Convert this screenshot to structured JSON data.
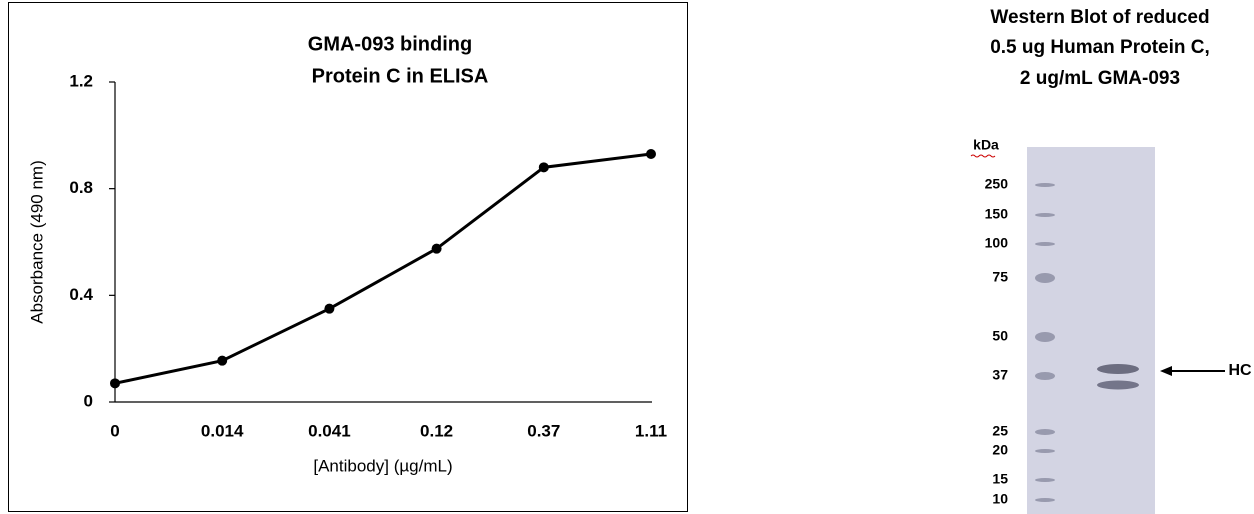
{
  "chart_data": {
    "type": "line",
    "title": [
      "GMA-093 binding",
      "Protein C in ELISA"
    ],
    "xlabel": "[Antibody] (µg/mL)",
    "ylabel": "Absorbance (490 nm)",
    "categories": [
      "0",
      "0.014",
      "0.041",
      "0.12",
      "0.37",
      "1.11"
    ],
    "series": [
      {
        "color": "#000000",
        "values": [
          0.07,
          0.155,
          0.35,
          0.575,
          0.88,
          0.93
        ]
      }
    ],
    "ylim": [
      0,
      1.2
    ],
    "yticks": [
      0,
      0.4,
      0.8,
      1.2
    ]
  },
  "blot": {
    "title": [
      "Western Blot of reduced",
      "0.5 ug Human Protein C,",
      "2 ug/mL GMA-093"
    ],
    "unit": "kDa",
    "markers": [
      250,
      150,
      100,
      75,
      50,
      37,
      25,
      20,
      15,
      10
    ],
    "annotation": "HC"
  }
}
